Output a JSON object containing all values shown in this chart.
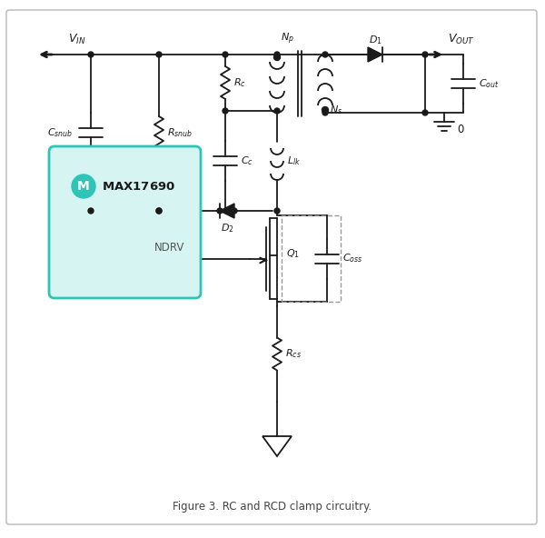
{
  "bg": "#ffffff",
  "lc": "#1a1a1a",
  "teal": "#2ec4b6",
  "teal_light": "#d6f5f2",
  "gray": "#999999",
  "figw": 6.0,
  "figh": 5.92,
  "dpi": 100,
  "caption": "Figure 3. RC and RCD clamp circuitry.",
  "vin_label": "VIN",
  "vout_label": "VOUT",
  "np_label": "Np",
  "ns_label": "Ns",
  "rc_label": "Rc",
  "rsnub_label": "Rsnub",
  "csnub_label": "Csnub",
  "cc_label": "Cc",
  "llk_label": "Llk",
  "d1_label": "D1",
  "d2_label": "D2",
  "cout_label": "Cout",
  "gnd_label": "0",
  "q1_label": "Q1",
  "coss_label": "Coss",
  "rcs_label": "Rcs",
  "ic_label": "MAX17690",
  "ndrv_label": "NDRV"
}
